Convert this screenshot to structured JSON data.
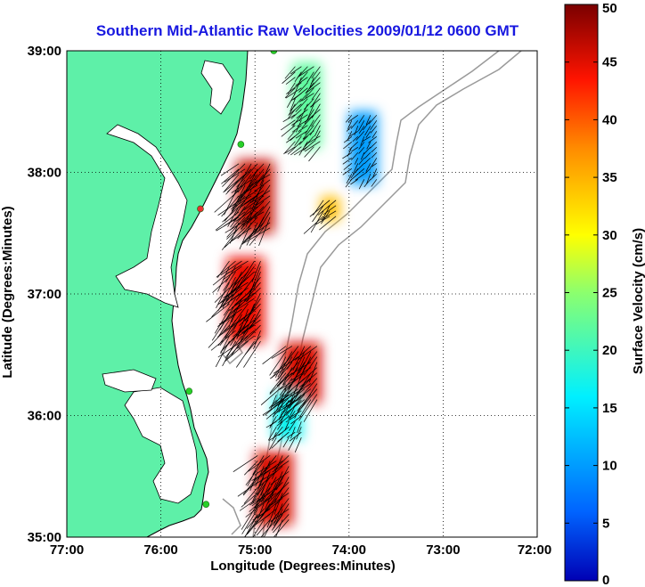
{
  "title": "Southern Mid-Atlantic Raw Velocities 2009/01/12 0600 GMT",
  "x_axis": {
    "label": "Longitude (Degrees:Minutes)",
    "ticks": [
      "77:00",
      "76:00",
      "75:00",
      "74:00",
      "73:00",
      "72:00"
    ],
    "range_west_deg": [
      77,
      72
    ]
  },
  "y_axis": {
    "label": "Latitude (Degrees:Minutes)",
    "ticks": [
      "39:00",
      "38:00",
      "37:00",
      "36:00",
      "35:00"
    ],
    "range_north_deg": [
      35,
      39
    ]
  },
  "colorbar": {
    "label": "Surface Velocity (cm/s)",
    "ticks": [
      "50",
      "45",
      "40",
      "35",
      "30",
      "25",
      "20",
      "15",
      "10",
      "5",
      "0"
    ],
    "range": [
      0,
      50
    ],
    "colormap": "jet"
  },
  "colors": {
    "land": "#5ef0a8",
    "water": "#ffffff",
    "coastline": "#000000",
    "bathymetry": "#9a9a9a",
    "title": "#1818e0",
    "station": "#28d028",
    "station_alt": "#e83030"
  },
  "grid": "dotted",
  "chart_data": {
    "type": "map-vector-field",
    "quantity": "surface current velocity",
    "units": "cm/s",
    "regions": [
      {
        "lon_w": [
          74.3,
          74.6
        ],
        "lat_n": [
          38.2,
          38.9
        ],
        "speed": 22
      },
      {
        "lon_w": [
          73.7,
          74.0
        ],
        "lat_n": [
          37.9,
          38.5
        ],
        "speed": 10
      },
      {
        "lon_w": [
          74.8,
          75.2
        ],
        "lat_n": [
          37.5,
          38.1
        ],
        "speed": 46
      },
      {
        "lon_w": [
          74.1,
          74.3
        ],
        "lat_n": [
          37.6,
          37.8
        ],
        "speed": 34
      },
      {
        "lon_w": [
          74.9,
          75.3
        ],
        "lat_n": [
          36.6,
          37.3
        ],
        "speed": 44
      },
      {
        "lon_w": [
          74.3,
          74.7
        ],
        "lat_n": [
          36.1,
          36.6
        ],
        "speed": 45
      },
      {
        "lon_w": [
          74.5,
          74.8
        ],
        "lat_n": [
          35.8,
          36.2
        ],
        "speed": 17
      },
      {
        "lon_w": [
          74.6,
          75.0
        ],
        "lat_n": [
          35.1,
          35.7
        ],
        "speed": 45
      }
    ],
    "stations": [
      {
        "lon_w": 74.8,
        "lat_n": 39.0,
        "type": "hf-radar"
      },
      {
        "lon_w": 75.15,
        "lat_n": 38.23,
        "type": "hf-radar"
      },
      {
        "lon_w": 75.58,
        "lat_n": 37.7,
        "type": "hf-radar-alt"
      },
      {
        "lon_w": 75.7,
        "lat_n": 36.2,
        "type": "hf-radar"
      },
      {
        "lon_w": 75.52,
        "lat_n": 35.27,
        "type": "hf-radar"
      }
    ]
  }
}
